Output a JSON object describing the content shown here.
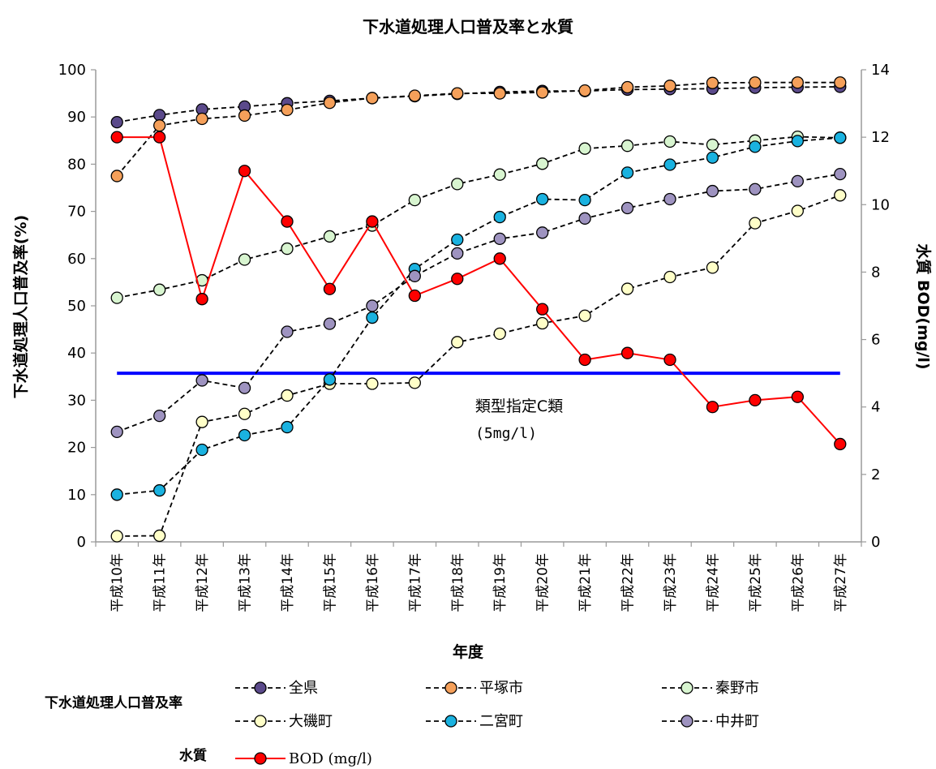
{
  "chart_data": {
    "type": "line",
    "title": "下水道処理人口普及率と水質",
    "xlabel": "年度",
    "ylabel": "下水道処理人口普及率(%)",
    "y2label": "水質 BOD(mg/l)",
    "ylim": [
      0,
      100
    ],
    "y2lim": [
      0,
      14
    ],
    "yticks": [
      "0",
      "10",
      "20",
      "30",
      "40",
      "50",
      "60",
      "70",
      "80",
      "90",
      "100"
    ],
    "y2ticks": [
      "0",
      "2",
      "4",
      "6",
      "8",
      "10",
      "12",
      "14"
    ],
    "categories": [
      "平成10年",
      "平成11年",
      "平成12年",
      "平成13年",
      "平成14年",
      "平成15年",
      "平成16年",
      "平成17年",
      "平成18年",
      "平成19年",
      "平成20年",
      "平成21年",
      "平成22年",
      "平成23年",
      "平成24年",
      "平成25年",
      "平成26年",
      "平成27年"
    ],
    "series": [
      {
        "name": "全県",
        "axis": "left",
        "style": "dashed",
        "color": "#5b4a8b",
        "values": [
          88.9,
          90.4,
          91.6,
          92.2,
          92.9,
          93.4,
          94.0,
          94.4,
          94.9,
          95.3,
          95.5,
          95.5,
          95.8,
          95.9,
          96.0,
          96.2,
          96.3,
          96.4
        ]
      },
      {
        "name": "平塚市",
        "axis": "left",
        "style": "dashed",
        "color": "#f5a05a",
        "values": [
          77.5,
          88.2,
          89.6,
          90.3,
          91.5,
          93.0,
          94.0,
          94.5,
          95.0,
          95.0,
          95.2,
          95.6,
          96.3,
          96.6,
          97.2,
          97.3,
          97.3,
          97.3
        ]
      },
      {
        "name": "秦野市",
        "axis": "left",
        "style": "dashed",
        "color": "#d8f5d0",
        "values": [
          51.7,
          53.4,
          55.4,
          59.8,
          62.1,
          64.7,
          67.0,
          72.4,
          75.8,
          77.8,
          80.1,
          83.3,
          83.9,
          84.8,
          84.1,
          85.0,
          85.8,
          85.6
        ]
      },
      {
        "name": "大磯町",
        "axis": "left",
        "style": "dashed",
        "color": "#ffffc8",
        "values": [
          1.2,
          1.3,
          25.4,
          27.1,
          31.0,
          33.5,
          33.5,
          33.7,
          42.3,
          44.1,
          46.3,
          47.9,
          53.6,
          56.1,
          58.1,
          67.5,
          70.1,
          73.4
        ]
      },
      {
        "name": "二宮町",
        "axis": "left",
        "style": "dashed",
        "color": "#1ab2e0",
        "values": [
          10.0,
          10.9,
          19.5,
          22.6,
          24.3,
          34.4,
          47.5,
          57.8,
          64.0,
          68.8,
          72.6,
          72.4,
          78.2,
          79.9,
          81.4,
          83.7,
          84.9,
          85.6
        ]
      },
      {
        "name": "中井町",
        "axis": "left",
        "style": "dashed",
        "color": "#9e93c0",
        "values": [
          23.3,
          26.7,
          34.2,
          32.6,
          44.5,
          46.2,
          50.0,
          56.3,
          61.1,
          64.2,
          65.5,
          68.5,
          70.7,
          72.6,
          74.3,
          74.7,
          76.4,
          77.9
        ]
      },
      {
        "name": "BOD (mg/l)",
        "axis": "right",
        "style": "solid",
        "color": "#ff0000",
        "values": [
          12.0,
          12.0,
          7.2,
          11.0,
          9.5,
          7.5,
          9.5,
          7.3,
          7.8,
          8.4,
          6.9,
          5.4,
          5.6,
          5.4,
          4.0,
          4.2,
          4.3,
          2.9
        ]
      }
    ],
    "reference_line": {
      "axis": "right",
      "value": 5,
      "color": "#0000ff",
      "label": "類型指定C類",
      "sublabel": "(5mg/l)"
    },
    "legend": {
      "placement": "bottom",
      "group1_label": "下水道処理人口普及率",
      "group2_label": "水質",
      "entries": [
        "全県",
        "平塚市",
        "秦野市",
        "大磯町",
        "二宮町",
        "中井町",
        "BOD (mg/l)"
      ]
    },
    "grid": false
  }
}
